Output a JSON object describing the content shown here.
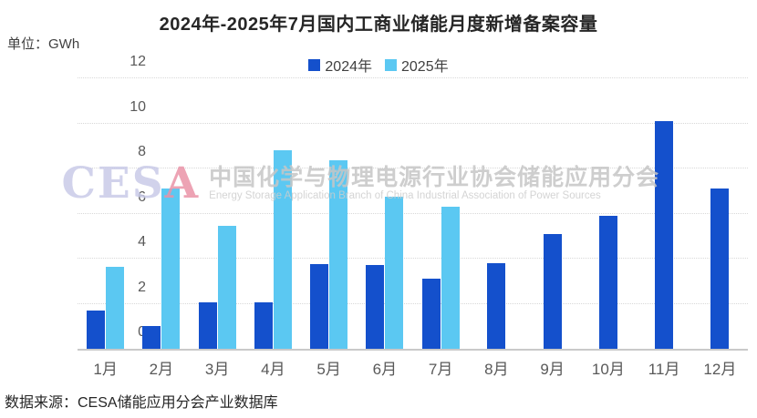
{
  "header": {
    "title": "2024年-2025年7月国内工商业储能月度新增备案容量",
    "unit": "单位：GWh"
  },
  "watermark": {
    "cesa_prefix": "CES",
    "cesa_a": "A",
    "cn": "中国化学与物理电源行业协会储能应用分会",
    "en": "Energy Storage Application Branch of China Industrial Association of Power Sources"
  },
  "footer": {
    "source": "数据来源：CESA储能应用分会产业数据库"
  },
  "chart_data": {
    "type": "bar",
    "title": "2024年-2025年7月国内工商业储能月度新增备案容量",
    "unit": "GWh",
    "categories": [
      "1月",
      "2月",
      "3月",
      "4月",
      "5月",
      "6月",
      "7月",
      "8月",
      "9月",
      "10月",
      "11月",
      "12月"
    ],
    "series": [
      {
        "name": "2024年",
        "color": "#1450cc",
        "values": [
          1.7,
          1.0,
          2.05,
          2.05,
          3.75,
          3.7,
          3.1,
          3.8,
          5.1,
          5.9,
          10.1,
          7.1
        ]
      },
      {
        "name": "2025年",
        "color": "#5bc8f2",
        "values": [
          3.65,
          7.1,
          5.45,
          8.8,
          8.35,
          6.75,
          6.3,
          null,
          null,
          null,
          null,
          null
        ]
      }
    ],
    "ylim": [
      0,
      12
    ],
    "yticks": [
      0,
      2,
      4,
      6,
      8,
      10,
      12
    ],
    "grid": "horizontal-dotted",
    "legend_position": "top-center"
  }
}
